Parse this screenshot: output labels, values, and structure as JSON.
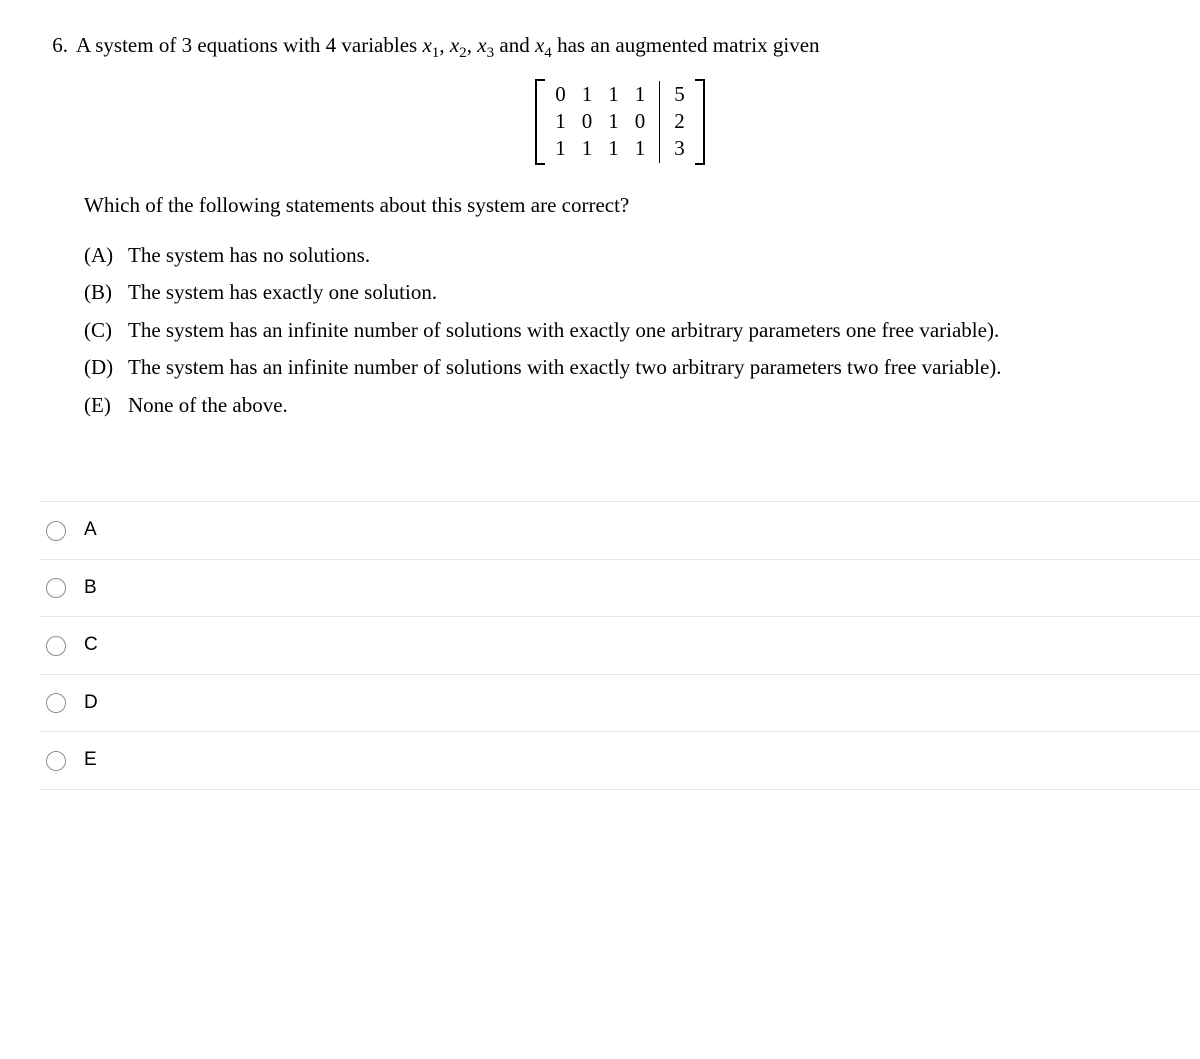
{
  "question": {
    "number": "6.",
    "intro_pre": "A system of 3 equations with 4 variables ",
    "vars_html": "x1, x2, x3 and x4",
    "intro_post": " has an augmented matrix given",
    "matrix": {
      "left": [
        [
          "0",
          "1",
          "1",
          "1"
        ],
        [
          "1",
          "0",
          "1",
          "0"
        ],
        [
          "1",
          "1",
          "1",
          "1"
        ]
      ],
      "right": [
        "5",
        "2",
        "3"
      ]
    },
    "sub_question": "Which of the following statements about this system are correct?",
    "choices": [
      {
        "letter": "(A)",
        "text": "The system has no solutions."
      },
      {
        "letter": "(B)",
        "text": "The system has exactly one solution."
      },
      {
        "letter": "(C)",
        "text": "The system has an infinite number of solutions with exactly one arbitrary parameters one free variable)."
      },
      {
        "letter": "(D)",
        "text": "The system has an infinite number of solutions with exactly two arbitrary parameters two free variable)."
      },
      {
        "letter": "(E)",
        "text": "None of the above."
      }
    ]
  },
  "answers": [
    "A",
    "B",
    "C",
    "D",
    "E"
  ],
  "colors": {
    "text": "#000000",
    "background": "#ffffff",
    "divider": "#e5e6e8",
    "radio_border": "#8a8d91"
  },
  "fonts": {
    "serif_size_pt": 16,
    "sans_size_pt": 14
  }
}
